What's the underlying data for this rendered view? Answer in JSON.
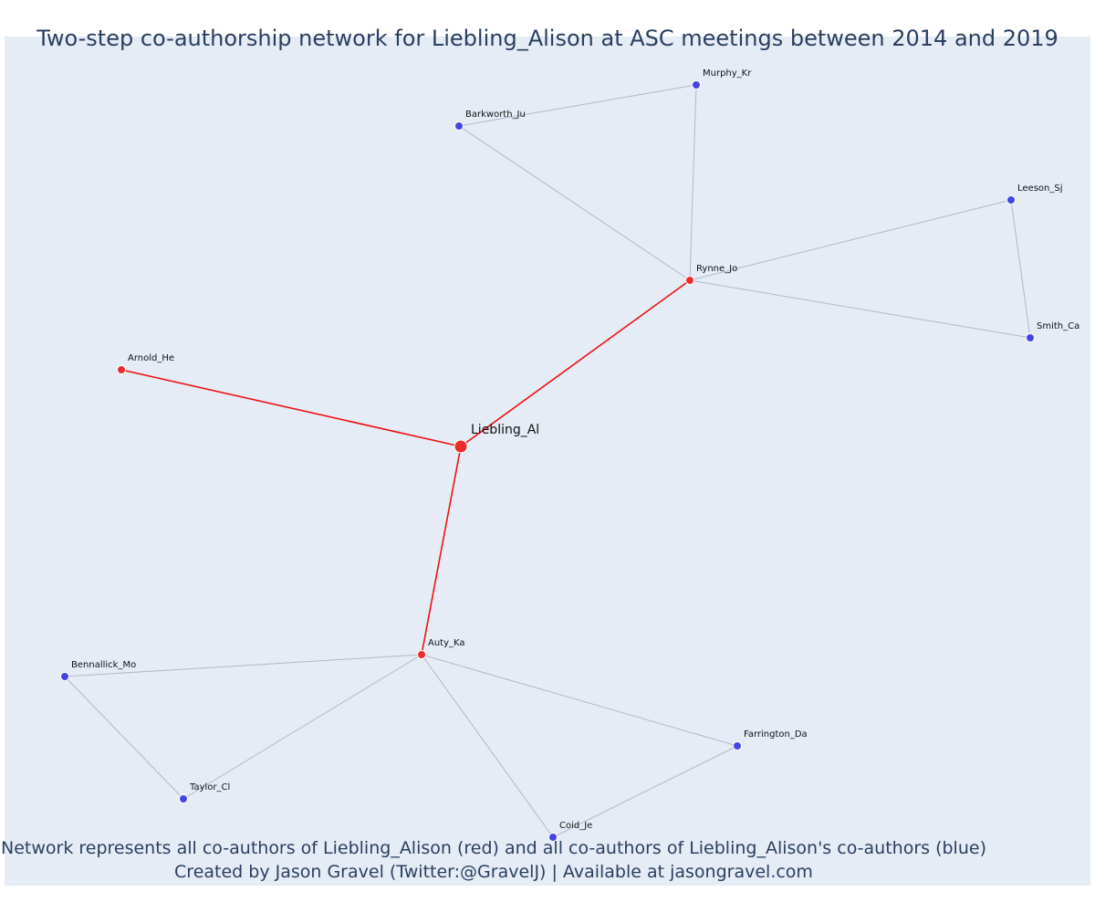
{
  "title": "Two-step co-authorship network for Liebling_Alison at ASC meetings between 2014 and 2019",
  "caption_line1": "Network represents all co-authors of Liebling_Alison (red) and all co-authors of Liebling_Alison's co-authors (blue)",
  "caption_line2": "Created by Jason Gravel (Twitter:@GravelJ) | Available at jasongravel.com",
  "colors": {
    "focal": "#ef2b2b",
    "first_degree": "#ef2b2b",
    "second_degree": "#4444e6",
    "focal_edge": "#ee1111",
    "other_edge": "#b3b7c8",
    "background": "#e5ecf6"
  },
  "nodes": [
    {
      "id": "Liebling_Al",
      "label": "Liebling_Al",
      "group": "focal"
    },
    {
      "id": "Arnold_He",
      "label": "Arnold_He",
      "group": "first"
    },
    {
      "id": "Rynne_Jo",
      "label": "Rynne_Jo",
      "group": "first"
    },
    {
      "id": "Auty_Ka",
      "label": "Auty_Ka",
      "group": "first"
    },
    {
      "id": "Murphy_Kr",
      "label": "Murphy_Kr",
      "group": "second"
    },
    {
      "id": "Barkworth_Ju",
      "label": "Barkworth_Ju",
      "group": "second"
    },
    {
      "id": "Leeson_Sj",
      "label": "Leeson_Sj",
      "group": "second"
    },
    {
      "id": "Smith_Ca",
      "label": "Smith_Ca",
      "group": "second"
    },
    {
      "id": "Bennallick_Mo",
      "label": "Bennallick_Mo",
      "group": "second"
    },
    {
      "id": "Taylor_Cl",
      "label": "Taylor_Cl",
      "group": "second"
    },
    {
      "id": "Farrington_Da",
      "label": "Farrington_Da",
      "group": "second"
    },
    {
      "id": "Coid_Je",
      "label": "Coid_Je",
      "group": "second"
    }
  ],
  "edges": [
    {
      "source": "Liebling_Al",
      "target": "Arnold_He",
      "focal": true
    },
    {
      "source": "Liebling_Al",
      "target": "Rynne_Jo",
      "focal": true
    },
    {
      "source": "Liebling_Al",
      "target": "Auty_Ka",
      "focal": true
    },
    {
      "source": "Rynne_Jo",
      "target": "Barkworth_Ju",
      "focal": false
    },
    {
      "source": "Rynne_Jo",
      "target": "Murphy_Kr",
      "focal": false
    },
    {
      "source": "Barkworth_Ju",
      "target": "Murphy_Kr",
      "focal": false
    },
    {
      "source": "Rynne_Jo",
      "target": "Leeson_Sj",
      "focal": false
    },
    {
      "source": "Rynne_Jo",
      "target": "Smith_Ca",
      "focal": false
    },
    {
      "source": "Leeson_Sj",
      "target": "Smith_Ca",
      "focal": false
    },
    {
      "source": "Auty_Ka",
      "target": "Bennallick_Mo",
      "focal": false
    },
    {
      "source": "Auty_Ka",
      "target": "Taylor_Cl",
      "focal": false
    },
    {
      "source": "Bennallick_Mo",
      "target": "Taylor_Cl",
      "focal": false
    },
    {
      "source": "Auty_Ka",
      "target": "Coid_Je",
      "focal": false
    },
    {
      "source": "Auty_Ka",
      "target": "Farrington_Da",
      "focal": false
    },
    {
      "source": "Coid_Je",
      "target": "Farrington_Da",
      "focal": false
    }
  ]
}
